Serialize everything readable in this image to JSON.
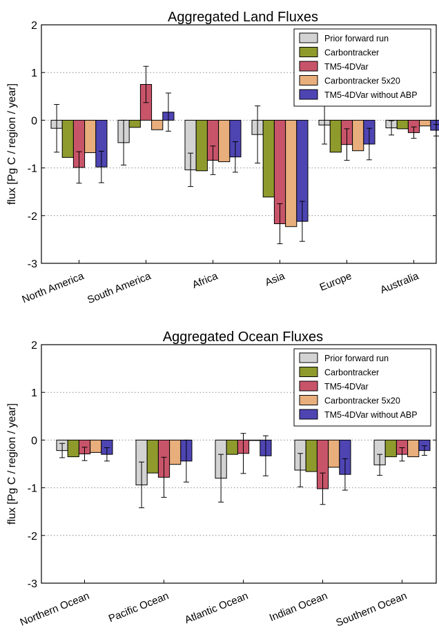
{
  "chart_data": [
    {
      "type": "bar",
      "title": "Aggregated Land Fluxes",
      "ylabel": "flux [Pg C / region / year]",
      "xlabel": "",
      "ylim": [
        -3,
        2
      ],
      "yticks": [
        2,
        1,
        0,
        -1,
        -2,
        -3
      ],
      "grid": "horizontal dotted",
      "legend_position": "top-right",
      "categories": [
        "North America",
        "South America",
        "Africa",
        "Asia",
        "Europe",
        "Australia"
      ],
      "series": [
        {
          "name": "Prior forward run",
          "color": "#d3d3d3",
          "values": [
            -0.17,
            -0.47,
            -1.04,
            -0.3,
            -0.1,
            -0.16
          ],
          "errors": [
            0.5,
            0.47,
            0.35,
            0.6,
            0.4,
            0.15
          ]
        },
        {
          "name": "Carbontracker",
          "color": "#8f9a2c",
          "values": [
            -0.78,
            -0.15,
            -1.06,
            -1.61,
            -0.67,
            -0.18
          ],
          "errors": [
            null,
            null,
            null,
            null,
            null,
            null
          ]
        },
        {
          "name": "TM5-4DVar",
          "color": "#c8546a",
          "values": [
            -0.99,
            0.75,
            -0.84,
            -2.17,
            -0.51,
            -0.26
          ],
          "errors": [
            0.33,
            0.38,
            0.3,
            0.42,
            0.33,
            0.12
          ]
        },
        {
          "name": "Carbontracker 5x20",
          "color": "#e8ae7c",
          "values": [
            -0.68,
            -0.2,
            -0.87,
            -2.23,
            -0.64,
            -0.12
          ],
          "errors": [
            null,
            null,
            null,
            null,
            null,
            null
          ]
        },
        {
          "name": "TM5-4DVar without ABP",
          "color": "#4e45b3",
          "values": [
            -0.98,
            0.17,
            -0.77,
            -2.12,
            -0.5,
            -0.21
          ],
          "errors": [
            0.33,
            0.4,
            0.32,
            0.42,
            0.33,
            0.12
          ]
        }
      ]
    },
    {
      "type": "bar",
      "title": "Aggregated Ocean Fluxes",
      "ylabel": "flux [Pg C / region / year]",
      "xlabel": "",
      "ylim": [
        -3,
        2
      ],
      "yticks": [
        2,
        1,
        0,
        -1,
        -2,
        -3
      ],
      "grid": "horizontal dotted",
      "legend_position": "top-right",
      "categories": [
        "Northern Ocean",
        "Pacific Ocean",
        "Atlantic Ocean",
        "Indian Ocean",
        "Southern Ocean"
      ],
      "series": [
        {
          "name": "Prior forward run",
          "color": "#d3d3d3",
          "values": [
            -0.22,
            -0.94,
            -0.8,
            -0.63,
            -0.52
          ],
          "errors": [
            0.15,
            0.48,
            0.5,
            0.35,
            0.22
          ]
        },
        {
          "name": "Carbontracker",
          "color": "#8f9a2c",
          "values": [
            -0.35,
            -0.69,
            -0.3,
            -0.66,
            -0.35
          ],
          "errors": [
            null,
            null,
            null,
            null,
            null
          ]
        },
        {
          "name": "TM5-4DVar",
          "color": "#c8546a",
          "values": [
            -0.29,
            -0.78,
            -0.28,
            -1.02,
            -0.3
          ],
          "errors": [
            0.14,
            0.42,
            0.42,
            0.33,
            0.14
          ]
        },
        {
          "name": "Carbontracker 5x20",
          "color": "#e8ae7c",
          "values": [
            -0.26,
            -0.51,
            0.0,
            -0.57,
            -0.35
          ],
          "errors": [
            null,
            null,
            null,
            null,
            null
          ]
        },
        {
          "name": "TM5-4DVar without ABP",
          "color": "#4e45b3",
          "values": [
            -0.3,
            -0.44,
            -0.33,
            -0.72,
            -0.22
          ],
          "errors": [
            0.14,
            0.44,
            0.42,
            0.33,
            0.1
          ]
        }
      ]
    }
  ]
}
